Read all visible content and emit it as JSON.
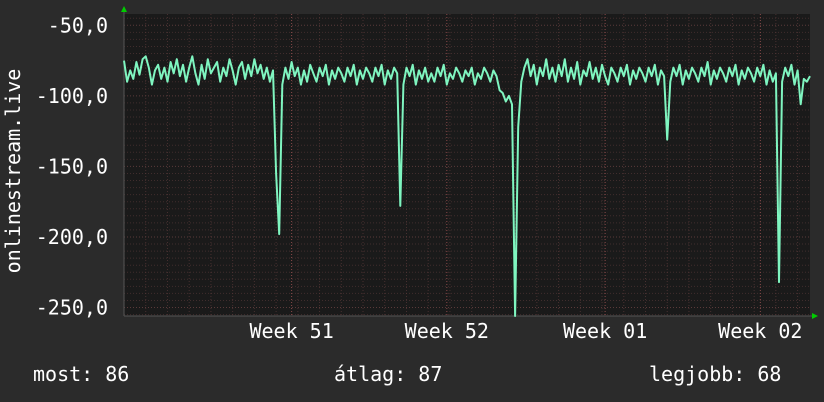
{
  "colors": {
    "background": "#2b2b2b",
    "plot_background": "#1a1a1a",
    "line": "#7ff5c0",
    "grid": "#5a3a3a",
    "axis_arrow": "#00cc00",
    "text": "#ffffff"
  },
  "chart_data": {
    "type": "line",
    "ylabel": "onlinestream.live",
    "xlabel": "",
    "title": "",
    "ylim": [
      -256,
      -42
    ],
    "yticks": [
      -50,
      -100,
      -150,
      -200,
      -250
    ],
    "ytick_labels": [
      "-50,0",
      "-100,0",
      "-150,0",
      "-200,0",
      "-250,0"
    ],
    "xticks": [
      {
        "label": "Week 51",
        "x": 54
      },
      {
        "label": "Week 52",
        "x": 104
      },
      {
        "label": "Week 01",
        "x": 155
      },
      {
        "label": "Week 02",
        "x": 205
      }
    ],
    "xlim": [
      0,
      221
    ],
    "grid": true,
    "series": [
      {
        "values": [
          [
            0,
            -75
          ],
          [
            1,
            -90
          ],
          [
            2,
            -82
          ],
          [
            3,
            -88
          ],
          [
            4,
            -76
          ],
          [
            5,
            -85
          ],
          [
            6,
            -74
          ],
          [
            7,
            -72
          ],
          [
            8,
            -80
          ],
          [
            9,
            -92
          ],
          [
            10,
            -82
          ],
          [
            11,
            -78
          ],
          [
            12,
            -88
          ],
          [
            13,
            -80
          ],
          [
            14,
            -90
          ],
          [
            15,
            -76
          ],
          [
            16,
            -84
          ],
          [
            17,
            -74
          ],
          [
            18,
            -86
          ],
          [
            19,
            -78
          ],
          [
            20,
            -90
          ],
          [
            21,
            -80
          ],
          [
            22,
            -72
          ],
          [
            23,
            -84
          ],
          [
            24,
            -92
          ],
          [
            25,
            -78
          ],
          [
            26,
            -88
          ],
          [
            27,
            -74
          ],
          [
            28,
            -84
          ],
          [
            29,
            -80
          ],
          [
            30,
            -76
          ],
          [
            31,
            -90
          ],
          [
            32,
            -80
          ],
          [
            33,
            -86
          ],
          [
            34,
            -74
          ],
          [
            35,
            -82
          ],
          [
            36,
            -92
          ],
          [
            37,
            -80
          ],
          [
            38,
            -76
          ],
          [
            39,
            -88
          ],
          [
            40,
            -78
          ],
          [
            41,
            -86
          ],
          [
            42,
            -74
          ],
          [
            43,
            -84
          ],
          [
            44,
            -78
          ],
          [
            45,
            -88
          ],
          [
            46,
            -80
          ],
          [
            47,
            -90
          ],
          [
            48,
            -82
          ],
          [
            49,
            -155
          ],
          [
            50,
            -198
          ],
          [
            51,
            -92
          ],
          [
            52,
            -80
          ],
          [
            53,
            -88
          ],
          [
            54,
            -76
          ],
          [
            55,
            -86
          ],
          [
            56,
            -80
          ],
          [
            57,
            -92
          ],
          [
            58,
            -82
          ],
          [
            59,
            -90
          ],
          [
            60,
            -78
          ],
          [
            61,
            -84
          ],
          [
            62,
            -90
          ],
          [
            63,
            -80
          ],
          [
            64,
            -86
          ],
          [
            65,
            -78
          ],
          [
            66,
            -92
          ],
          [
            67,
            -82
          ],
          [
            68,
            -88
          ],
          [
            69,
            -80
          ],
          [
            70,
            -84
          ],
          [
            71,
            -90
          ],
          [
            72,
            -80
          ],
          [
            73,
            -86
          ],
          [
            74,
            -78
          ],
          [
            75,
            -92
          ],
          [
            76,
            -82
          ],
          [
            77,
            -88
          ],
          [
            78,
            -80
          ],
          [
            79,
            -84
          ],
          [
            80,
            -90
          ],
          [
            81,
            -80
          ],
          [
            82,
            -86
          ],
          [
            83,
            -78
          ],
          [
            84,
            -92
          ],
          [
            85,
            -82
          ],
          [
            86,
            -88
          ],
          [
            87,
            -80
          ],
          [
            88,
            -84
          ],
          [
            89,
            -178
          ],
          [
            90,
            -92
          ],
          [
            91,
            -80
          ],
          [
            92,
            -86
          ],
          [
            93,
            -78
          ],
          [
            94,
            -92
          ],
          [
            95,
            -82
          ],
          [
            96,
            -88
          ],
          [
            97,
            -80
          ],
          [
            98,
            -90
          ],
          [
            99,
            -84
          ],
          [
            100,
            -90
          ],
          [
            101,
            -80
          ],
          [
            102,
            -86
          ],
          [
            103,
            -78
          ],
          [
            104,
            -92
          ],
          [
            105,
            -84
          ],
          [
            106,
            -88
          ],
          [
            107,
            -80
          ],
          [
            108,
            -84
          ],
          [
            109,
            -90
          ],
          [
            110,
            -82
          ],
          [
            111,
            -86
          ],
          [
            112,
            -80
          ],
          [
            113,
            -92
          ],
          [
            114,
            -84
          ],
          [
            115,
            -88
          ],
          [
            116,
            -80
          ],
          [
            117,
            -84
          ],
          [
            118,
            -90
          ],
          [
            119,
            -82
          ],
          [
            120,
            -86
          ],
          [
            121,
            -96
          ],
          [
            122,
            -98
          ],
          [
            123,
            -104
          ],
          [
            124,
            -100
          ],
          [
            125,
            -106
          ],
          [
            126,
            -256
          ],
          [
            127,
            -122
          ],
          [
            128,
            -90
          ],
          [
            129,
            -80
          ],
          [
            130,
            -74
          ],
          [
            131,
            -86
          ],
          [
            132,
            -78
          ],
          [
            133,
            -92
          ],
          [
            134,
            -80
          ],
          [
            135,
            -86
          ],
          [
            136,
            -74
          ],
          [
            137,
            -88
          ],
          [
            138,
            -80
          ],
          [
            139,
            -90
          ],
          [
            140,
            -78
          ],
          [
            141,
            -86
          ],
          [
            142,
            -74
          ],
          [
            143,
            -90
          ],
          [
            144,
            -80
          ],
          [
            145,
            -88
          ],
          [
            146,
            -76
          ],
          [
            147,
            -92
          ],
          [
            148,
            -82
          ],
          [
            149,
            -86
          ],
          [
            150,
            -76
          ],
          [
            151,
            -88
          ],
          [
            152,
            -80
          ],
          [
            153,
            -90
          ],
          [
            154,
            -78
          ],
          [
            155,
            -86
          ],
          [
            156,
            -92
          ],
          [
            157,
            -80
          ],
          [
            158,
            -84
          ],
          [
            159,
            -90
          ],
          [
            160,
            -80
          ],
          [
            161,
            -86
          ],
          [
            162,
            -78
          ],
          [
            163,
            -92
          ],
          [
            164,
            -82
          ],
          [
            165,
            -88
          ],
          [
            166,
            -80
          ],
          [
            167,
            -84
          ],
          [
            168,
            -90
          ],
          [
            169,
            -80
          ],
          [
            170,
            -86
          ],
          [
            171,
            -78
          ],
          [
            172,
            -92
          ],
          [
            173,
            -82
          ],
          [
            174,
            -86
          ],
          [
            175,
            -131
          ],
          [
            176,
            -90
          ],
          [
            177,
            -80
          ],
          [
            178,
            -86
          ],
          [
            179,
            -78
          ],
          [
            180,
            -92
          ],
          [
            181,
            -82
          ],
          [
            182,
            -88
          ],
          [
            183,
            -80
          ],
          [
            184,
            -84
          ],
          [
            185,
            -90
          ],
          [
            186,
            -80
          ],
          [
            187,
            -86
          ],
          [
            188,
            -76
          ],
          [
            189,
            -92
          ],
          [
            190,
            -82
          ],
          [
            191,
            -88
          ],
          [
            192,
            -80
          ],
          [
            193,
            -84
          ],
          [
            194,
            -90
          ],
          [
            195,
            -80
          ],
          [
            196,
            -86
          ],
          [
            197,
            -78
          ],
          [
            198,
            -92
          ],
          [
            199,
            -82
          ],
          [
            200,
            -88
          ],
          [
            201,
            -80
          ],
          [
            202,
            -84
          ],
          [
            203,
            -90
          ],
          [
            204,
            -80
          ],
          [
            205,
            -86
          ],
          [
            206,
            -78
          ],
          [
            207,
            -92
          ],
          [
            208,
            -82
          ],
          [
            209,
            -90
          ],
          [
            210,
            -84
          ],
          [
            211,
            -232
          ],
          [
            212,
            -90
          ],
          [
            213,
            -80
          ],
          [
            214,
            -86
          ],
          [
            215,
            -78
          ],
          [
            216,
            -92
          ],
          [
            217,
            -82
          ],
          [
            218,
            -106
          ],
          [
            219,
            -88
          ],
          [
            220,
            -90
          ],
          [
            221,
            -86
          ]
        ]
      }
    ]
  },
  "footer": {
    "most": "most: 86",
    "avg": "átlag: 87",
    "best": "legjobb: 68"
  }
}
